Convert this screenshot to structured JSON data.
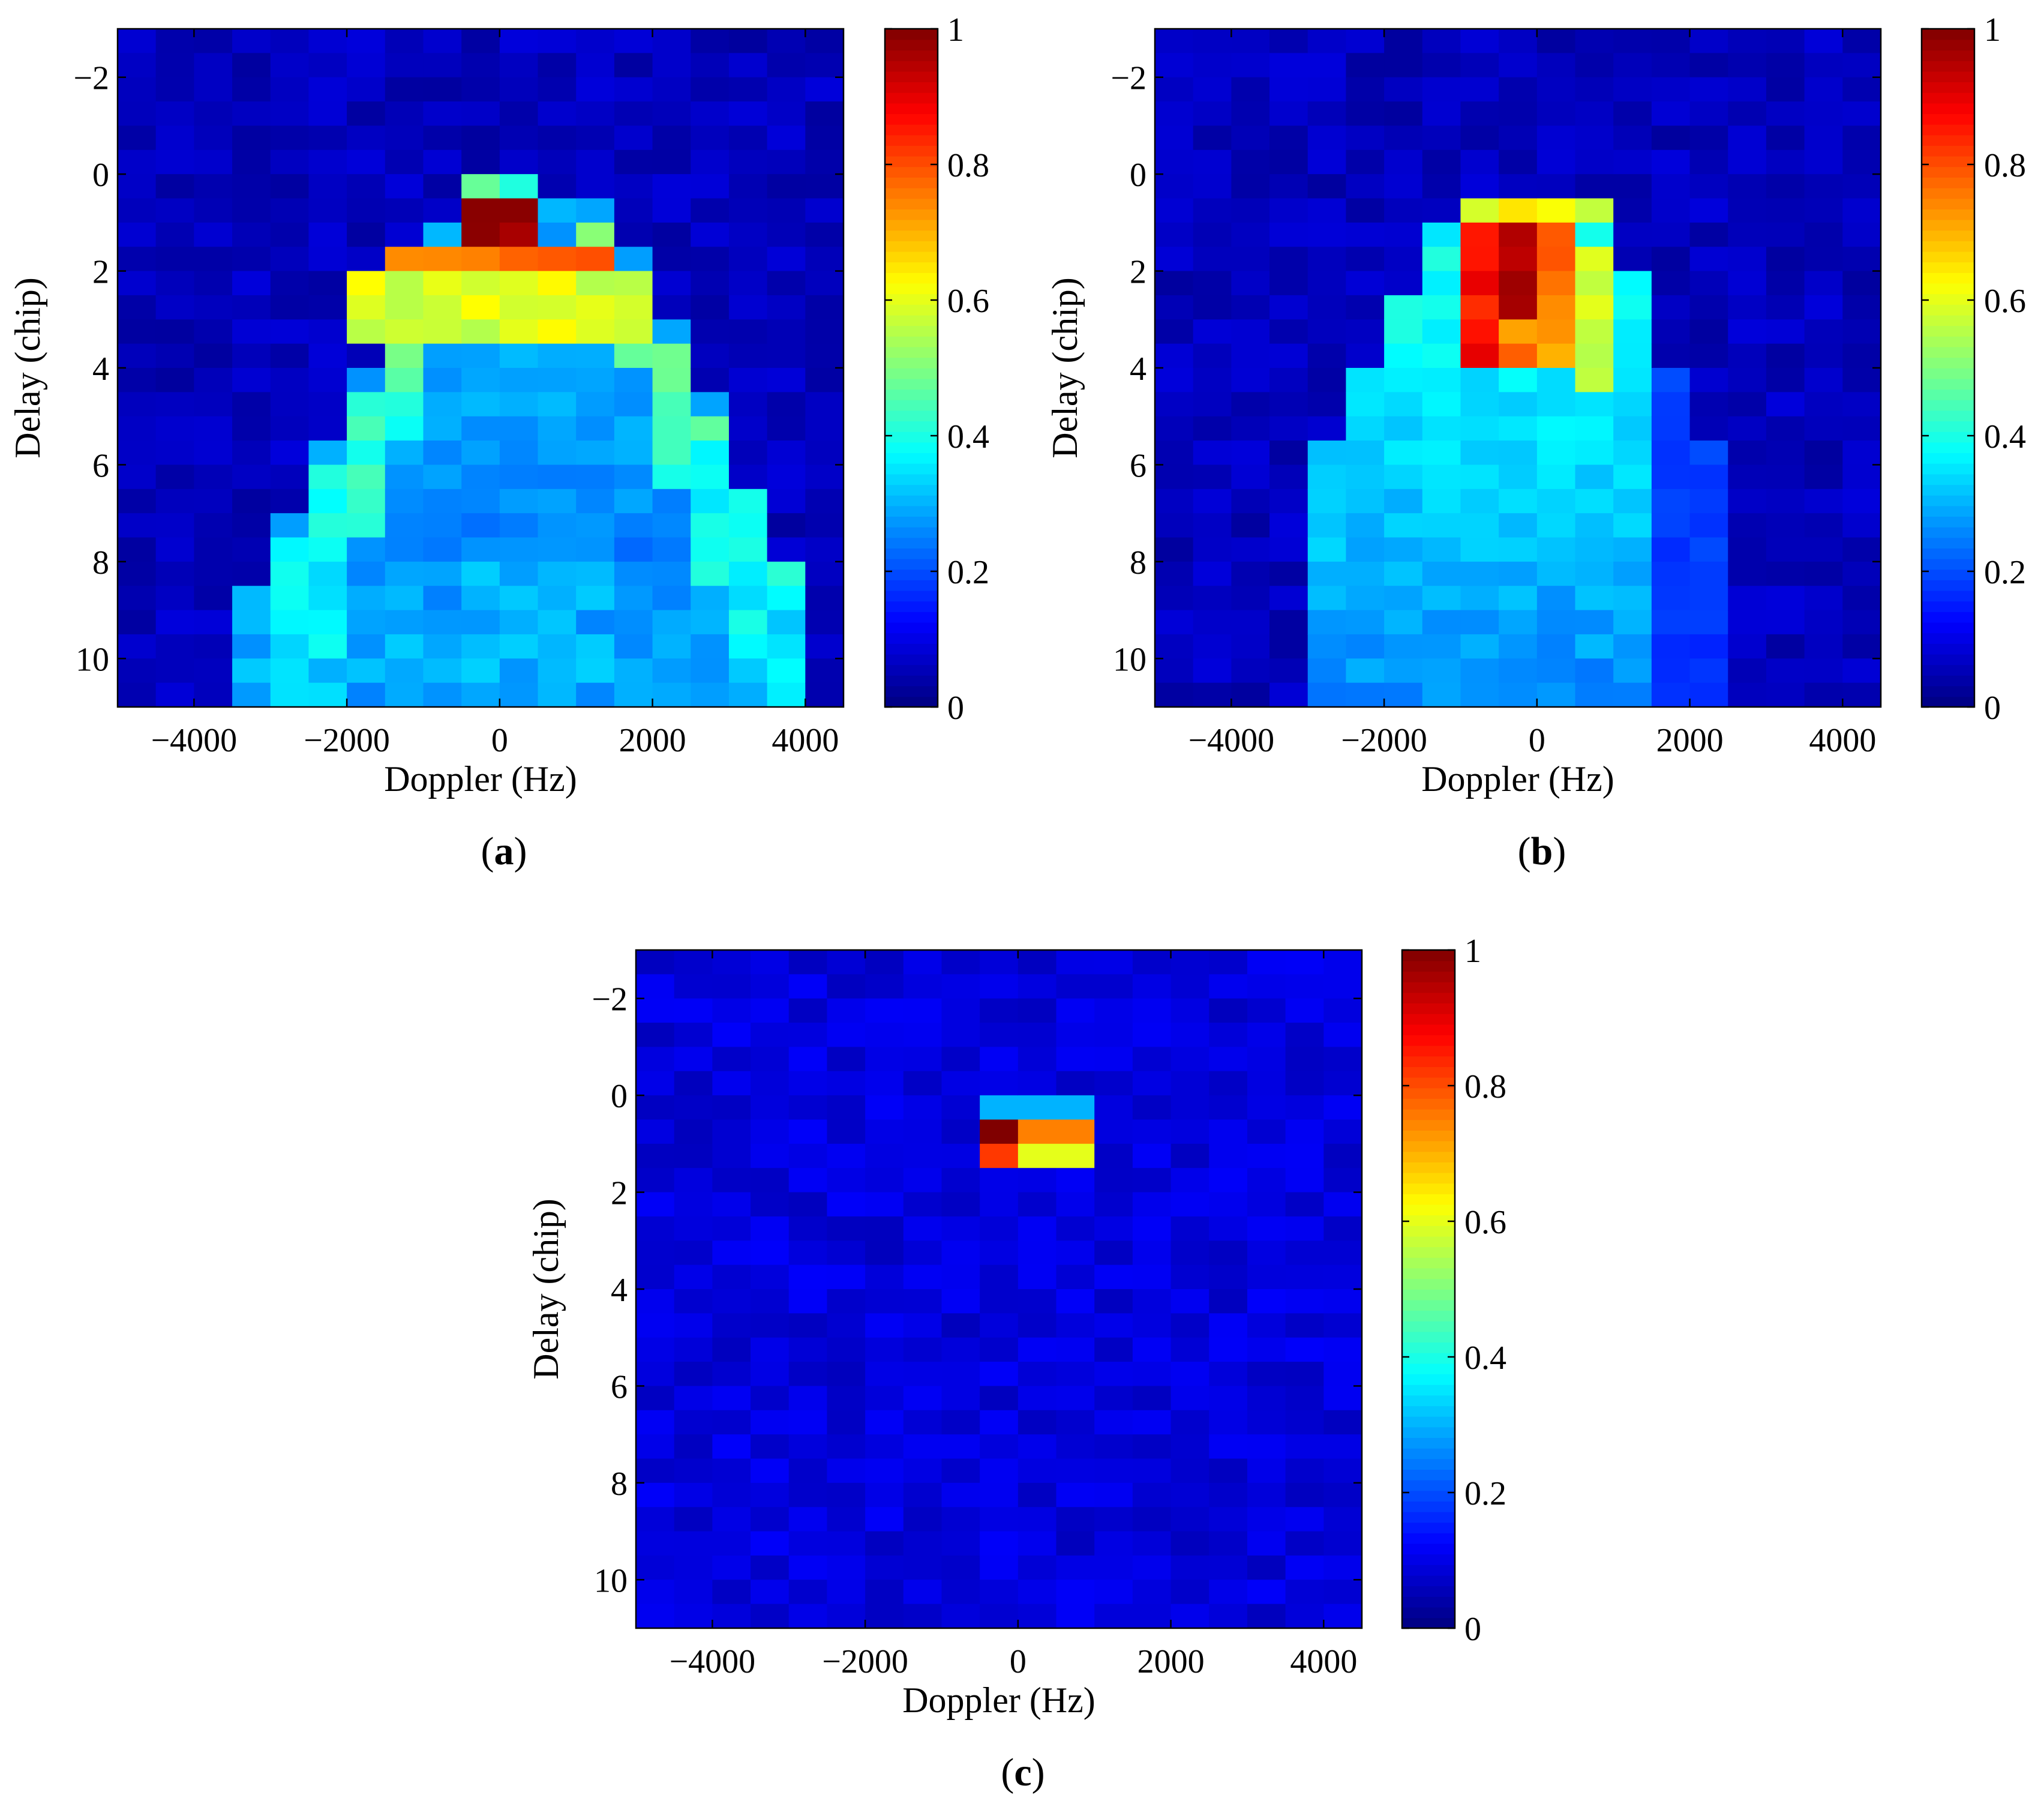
{
  "figure": {
    "caption_open": "(",
    "caption_close": ")",
    "colormap": "jet",
    "colormap_stops": [
      "#00008F",
      "#0000FF",
      "#00FFFF",
      "#FFFF00",
      "#FF0000",
      "#800000"
    ]
  },
  "chart_data": [
    {
      "id": "a",
      "type": "heatmap",
      "caption": "a",
      "xlabel": "Doppler (Hz)",
      "ylabel": "Delay (chip)",
      "xlim": [
        -5000,
        4500
      ],
      "ylim": [
        -3,
        11
      ],
      "xticks": [
        -4000,
        -2000,
        0,
        2000,
        4000
      ],
      "xtick_labels": [
        "−4000",
        "−2000",
        "0",
        "2000",
        "4000"
      ],
      "yticks": [
        -2,
        0,
        2,
        4,
        6,
        8,
        10
      ],
      "ytick_labels": [
        "−2",
        "0",
        "2",
        "4",
        "6",
        "8",
        "10"
      ],
      "colorbar": {
        "range": [
          0,
          1
        ],
        "ticks": [
          0,
          0.2,
          0.4,
          0.6,
          0.8,
          1
        ],
        "tick_labels": [
          "0",
          "0.2",
          "0.4",
          "0.6",
          "0.8",
          "1"
        ]
      },
      "doppler_bin_hz": 500,
      "delay_bin_chip": 0.5,
      "peak": {
        "doppler_hz": 0,
        "delay_chip": 1.0,
        "value": 1.0
      },
      "description_values": {
        "main_lobe_doppler_span_hz": [
          -3000,
          3800
        ],
        "mid_region_value": 0.3,
        "edge_arms_value": 0.5,
        "background_value": 0.05
      }
    },
    {
      "id": "b",
      "type": "heatmap",
      "caption": "b",
      "xlabel": "Doppler (Hz)",
      "ylabel": "Delay (chip)",
      "xlim": [
        -5000,
        4500
      ],
      "ylim": [
        -3,
        11
      ],
      "xticks": [
        -4000,
        -2000,
        0,
        2000,
        4000
      ],
      "xtick_labels": [
        "−4000",
        "−2000",
        "0",
        "2000",
        "4000"
      ],
      "yticks": [
        -2,
        0,
        2,
        4,
        6,
        8,
        10
      ],
      "ytick_labels": [
        "−2",
        "0",
        "2",
        "4",
        "6",
        "8",
        "10"
      ],
      "colorbar": {
        "range": [
          0,
          1
        ],
        "ticks": [
          0,
          0.2,
          0.4,
          0.6,
          0.8,
          1
        ],
        "tick_labels": [
          "0",
          "0.2",
          "0.4",
          "0.6",
          "0.8",
          "1"
        ]
      },
      "doppler_bin_hz": 500,
      "delay_bin_chip": 0.5,
      "peak": {
        "doppler_hz": -500,
        "delay_chip": 2.0,
        "value": 1.0
      },
      "description_values": {
        "main_lobe_doppler_span_hz": [
          -3000,
          3000
        ],
        "hot_region_value": 0.9,
        "mid_region_value": 0.35,
        "background_value": 0.05
      }
    },
    {
      "id": "c",
      "type": "heatmap",
      "caption": "c",
      "xlabel": "Doppler (Hz)",
      "ylabel": "Delay (chip)",
      "xlim": [
        -5000,
        4500
      ],
      "ylim": [
        -3,
        11
      ],
      "xticks": [
        -4000,
        -2000,
        0,
        2000,
        4000
      ],
      "xtick_labels": [
        "−4000",
        "−2000",
        "0",
        "2000",
        "4000"
      ],
      "yticks": [
        -2,
        0,
        2,
        4,
        6,
        8,
        10
      ],
      "ytick_labels": [
        "−2",
        "0",
        "2",
        "4",
        "6",
        "8",
        "10"
      ],
      "colorbar": {
        "range": [
          0,
          1
        ],
        "ticks": [
          0,
          0.2,
          0.4,
          0.6,
          0.8,
          1
        ],
        "tick_labels": [
          "0",
          "0.2",
          "0.4",
          "0.6",
          "0.8",
          "1"
        ]
      },
      "doppler_bin_hz": 500,
      "delay_bin_chip": 0.5,
      "peak": {
        "doppler_hz": 0,
        "delay_chip": 1.0,
        "value": 1.0
      },
      "description_values": {
        "secondary_peak_value": 0.8,
        "background_value": 0.08
      }
    }
  ]
}
